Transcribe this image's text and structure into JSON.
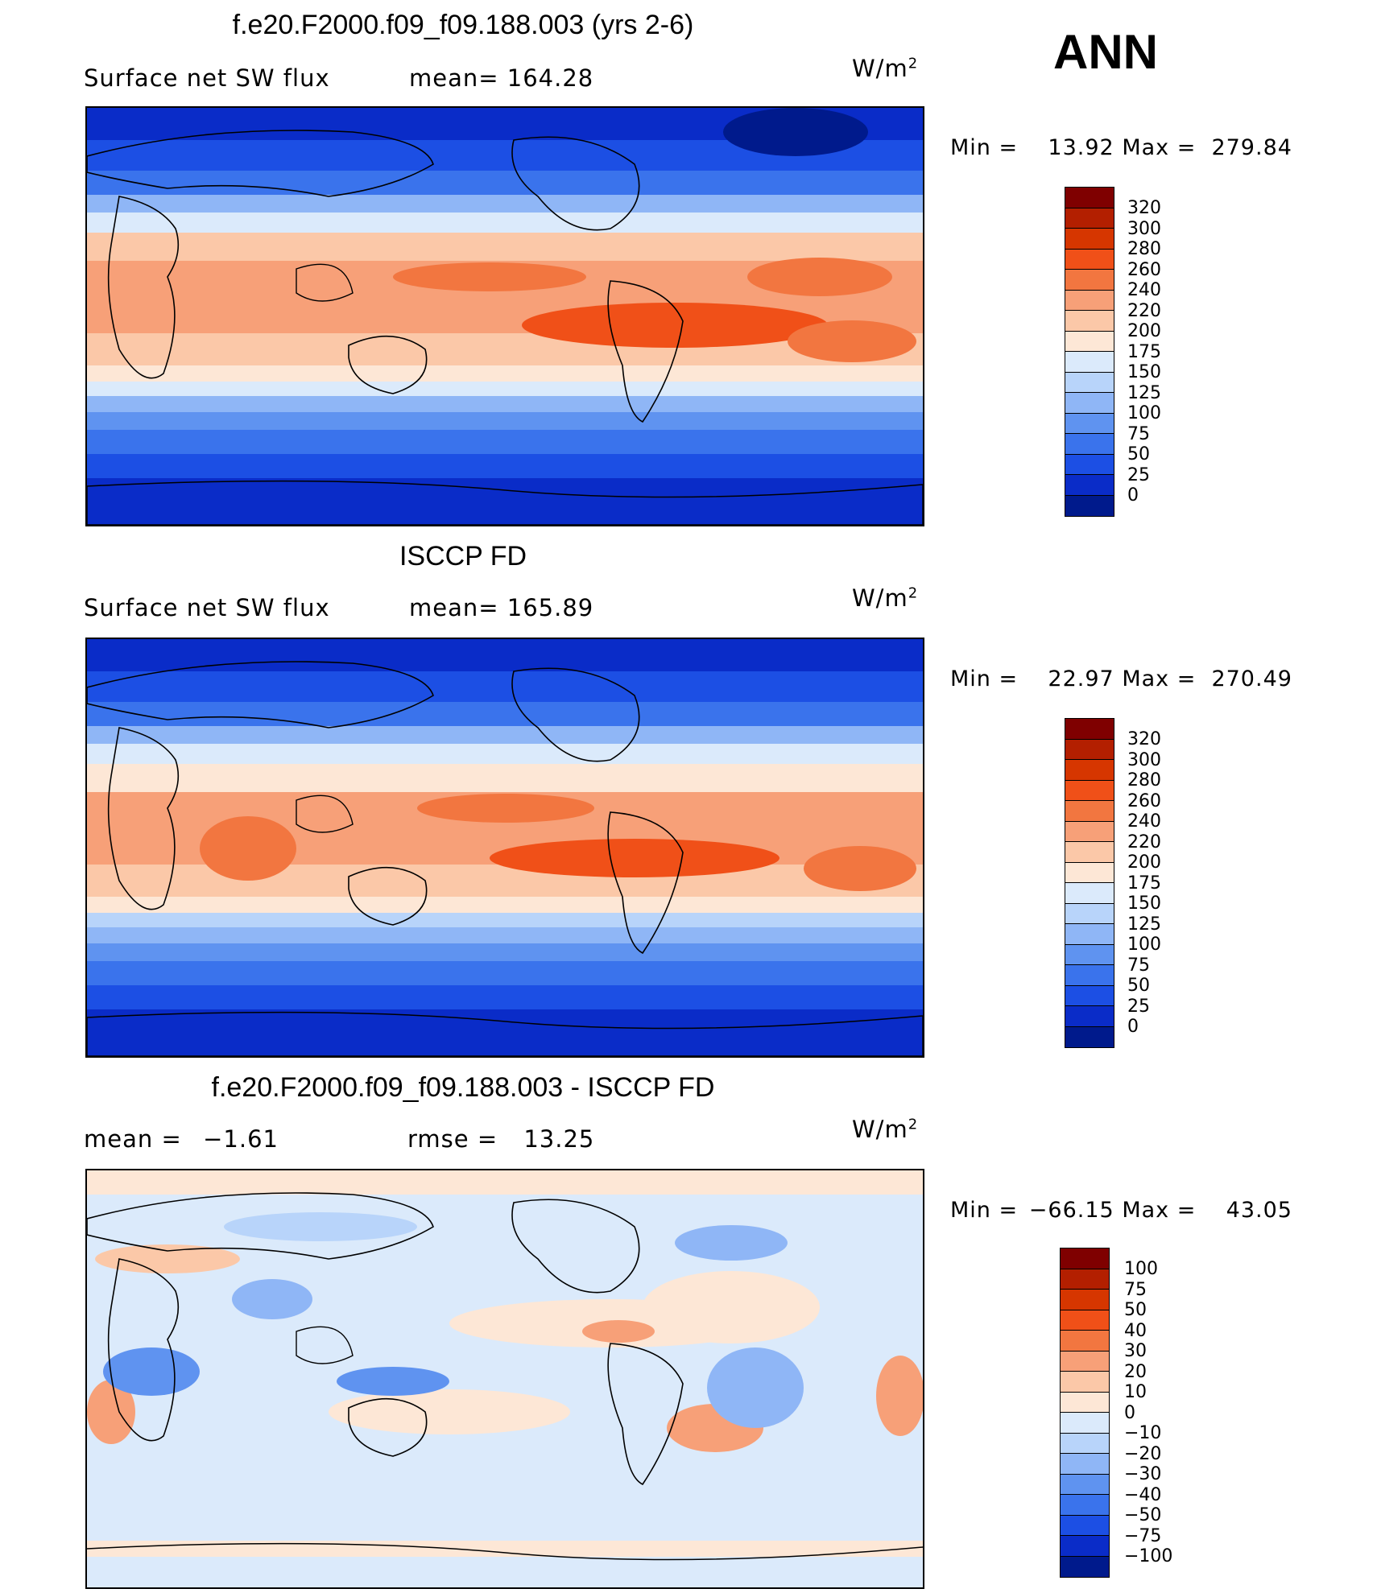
{
  "season": "ANN",
  "units_label": "W/m",
  "units_sup": "2",
  "panels": [
    {
      "title": "f.e20.F2000.f09_f09.188.003 (yrs 2-6)",
      "left_label": "Surface net SW flux",
      "stat_label": "mean=",
      "stat_value": "164.28",
      "min_label": "Min =",
      "min_value": "13.92",
      "max_label": "Max =",
      "max_value": "279.84"
    },
    {
      "title": "ISCCP FD",
      "left_label": "Surface net SW flux",
      "stat_label": "mean=",
      "stat_value": "165.89",
      "min_label": "Min =",
      "min_value": "22.97",
      "max_label": "Max =",
      "max_value": "270.49"
    },
    {
      "title": "f.e20.F2000.f09_f09.188.003 - ISCCP FD",
      "left_label": "mean =",
      "left_value": "−1.61",
      "stat_label": "rmse =",
      "stat_value": "13.25",
      "min_label": "Min =",
      "min_value": "−66.15",
      "max_label": "Max =",
      "max_value": "43.05"
    }
  ],
  "colorbar_abs": {
    "labels": [
      "320",
      "300",
      "280",
      "260",
      "240",
      "220",
      "200",
      "175",
      "150",
      "125",
      "100",
      "75",
      "50",
      "25",
      "0"
    ],
    "colors": [
      "#7f0000",
      "#b31f00",
      "#d63600",
      "#f05018",
      "#f27640",
      "#f7a078",
      "#fbc8a8",
      "#fde7d6",
      "#dbeafb",
      "#b8d4fa",
      "#8fb6f6",
      "#5f93f0",
      "#3a73ec",
      "#1c4fe4",
      "#0a2cc8",
      "#001a8c"
    ]
  },
  "colorbar_diff": {
    "labels": [
      "100",
      "75",
      "50",
      "40",
      "30",
      "20",
      "10",
      "0",
      "−10",
      "−20",
      "−30",
      "−40",
      "−50",
      "−75",
      "−100"
    ],
    "colors": [
      "#7f0000",
      "#b31f00",
      "#d63600",
      "#f05018",
      "#f27640",
      "#f7a078",
      "#fbc8a8",
      "#fde7d6",
      "#dbeafb",
      "#b8d4fa",
      "#8fb6f6",
      "#5f93f0",
      "#3a73ec",
      "#1c4fe4",
      "#0a2cc8",
      "#001a8c"
    ]
  },
  "chart_data": [
    {
      "type": "heatmap",
      "title": "f.e20.F2000.f09_f09.188.003 (yrs 2-6)",
      "variable": "Surface net SW flux",
      "units": "W/m2",
      "mean": 164.28,
      "min": 13.92,
      "max": 279.84,
      "contour_levels": [
        0,
        25,
        50,
        75,
        100,
        125,
        150,
        175,
        200,
        220,
        240,
        260,
        280,
        300,
        320
      ]
    },
    {
      "type": "heatmap",
      "title": "ISCCP FD",
      "variable": "Surface net SW flux",
      "units": "W/m2",
      "mean": 165.89,
      "min": 22.97,
      "max": 270.49,
      "contour_levels": [
        0,
        25,
        50,
        75,
        100,
        125,
        150,
        175,
        200,
        220,
        240,
        260,
        280,
        300,
        320
      ]
    },
    {
      "type": "heatmap",
      "title": "f.e20.F2000.f09_f09.188.003 - ISCCP FD",
      "units": "W/m2",
      "mean": -1.61,
      "rmse": 13.25,
      "min": -66.15,
      "max": 43.05,
      "contour_levels": [
        -100,
        -75,
        -50,
        -40,
        -30,
        -20,
        -10,
        0,
        10,
        20,
        30,
        40,
        50,
        75,
        100
      ]
    }
  ]
}
